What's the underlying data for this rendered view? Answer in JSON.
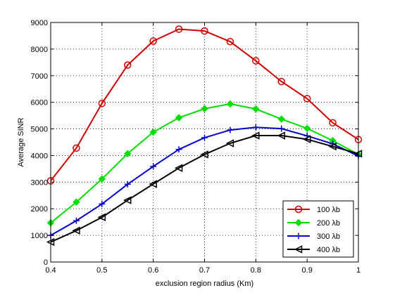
{
  "chart_data": {
    "type": "line",
    "xlabel": "exclusion region radius (Km)",
    "ylabel": "Average SINR",
    "xlim": [
      0.4,
      1
    ],
    "ylim": [
      0,
      9000
    ],
    "xticks": [
      0.4,
      0.5,
      0.6,
      0.7,
      0.8,
      0.9,
      1
    ],
    "xtick_labels": [
      "0.4",
      "0.5",
      "0.6",
      "0.7",
      "0.8",
      "0.9",
      "1"
    ],
    "yticks": [
      0,
      1000,
      2000,
      3000,
      4000,
      5000,
      6000,
      7000,
      8000,
      9000
    ],
    "ytick_labels": [
      "0",
      "1000",
      "2000",
      "3000",
      "4000",
      "5000",
      "6000",
      "7000",
      "8000",
      "9000"
    ],
    "grid": true,
    "legend_position": "bottom-right",
    "x": [
      0.4,
      0.45,
      0.5,
      0.55,
      0.6,
      0.65,
      0.7,
      0.75,
      0.8,
      0.85,
      0.9,
      0.95,
      1.0
    ],
    "series": [
      {
        "name": "100 λb",
        "color": "#d00000",
        "marker": "circle",
        "values": [
          3050,
          4280,
          5960,
          7400,
          8300,
          8750,
          8680,
          8280,
          7560,
          6780,
          6140,
          5230,
          4600
        ]
      },
      {
        "name": "200 λb",
        "color": "#00e000",
        "marker": "diamond",
        "values": [
          1470,
          2250,
          3120,
          4070,
          4880,
          5420,
          5760,
          5940,
          5750,
          5370,
          5020,
          4560,
          4040
        ]
      },
      {
        "name": "300 λb",
        "color": "#0000d0",
        "marker": "plus",
        "values": [
          1000,
          1550,
          2180,
          2920,
          3590,
          4230,
          4670,
          4960,
          5060,
          5010,
          4740,
          4440,
          3980
        ]
      },
      {
        "name": "400 λb",
        "color": "#000000",
        "marker": "triangle-left",
        "values": [
          750,
          1180,
          1680,
          2320,
          2930,
          3530,
          4040,
          4460,
          4750,
          4750,
          4610,
          4340,
          4070
        ]
      }
    ]
  }
}
